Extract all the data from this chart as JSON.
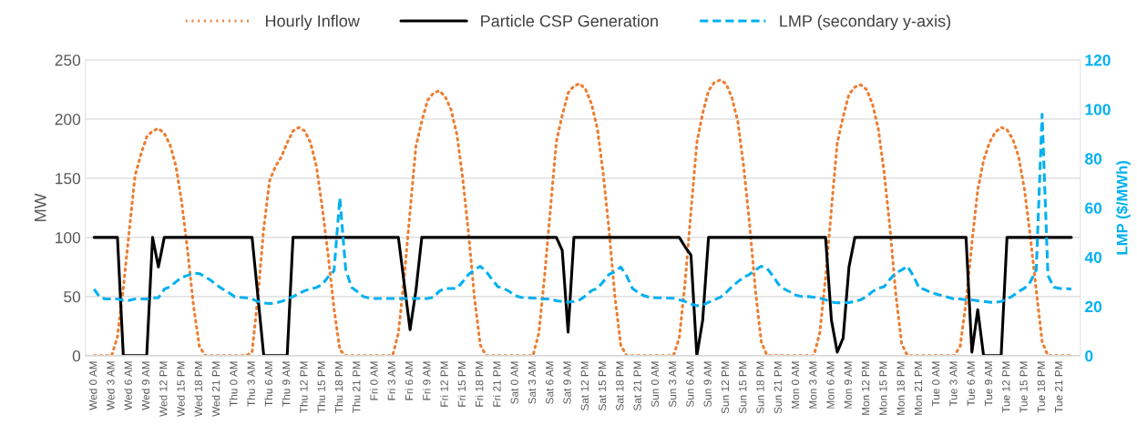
{
  "chart_data": {
    "type": "line",
    "ylabel": "MW",
    "y2label": "LMP ($/MWh)",
    "categories": [
      "Wed 0 AM",
      null,
      null,
      "Wed 3 AM",
      null,
      null,
      "Wed 6 AM",
      null,
      null,
      "Wed 9 AM",
      null,
      null,
      "Wed 12 PM",
      null,
      null,
      "Wed 15 PM",
      null,
      null,
      "Wed 18 PM",
      null,
      null,
      "Wed 21 PM",
      null,
      null,
      "Thu 0 AM",
      null,
      null,
      "Thu 3 AM",
      null,
      null,
      "Thu 6 AM",
      null,
      null,
      "Thu 9 AM",
      null,
      null,
      "Thu 12 PM",
      null,
      null,
      "Thu 15 PM",
      null,
      null,
      "Thu 18 PM",
      null,
      null,
      "Thu 21 PM",
      null,
      null,
      "Fri 0 AM",
      null,
      null,
      "Fri 3 AM",
      null,
      null,
      "Fri 6 AM",
      null,
      null,
      "Fri 9 AM",
      null,
      null,
      "Fri 12 PM",
      null,
      null,
      "Fri 15 PM",
      null,
      null,
      "Fri 18 PM",
      null,
      null,
      "Fri 21 PM",
      null,
      null,
      "Sat 0 AM",
      null,
      null,
      "Sat 3 AM",
      null,
      null,
      "Sat 6 AM",
      null,
      null,
      "Sat 9 AM",
      null,
      null,
      "Sat 12 PM",
      null,
      null,
      "Sat 15 PM",
      null,
      null,
      "Sat 18 PM",
      null,
      null,
      "Sat 21 PM",
      null,
      null,
      "Sun 0 AM",
      null,
      null,
      "Sun 3 AM",
      null,
      null,
      "Sun 6 AM",
      null,
      null,
      "Sun 9 AM",
      null,
      null,
      "Sun 12 PM",
      null,
      null,
      "Sun 15 PM",
      null,
      null,
      "Sun 18 PM",
      null,
      null,
      "Sun 21 PM",
      null,
      null,
      "Mon 0 AM",
      null,
      null,
      "Mon 3 AM",
      null,
      null,
      "Mon 6 AM",
      null,
      null,
      "Mon 9 AM",
      null,
      null,
      "Mon 12 PM",
      null,
      null,
      "Mon 15 PM",
      null,
      null,
      "Mon 18 PM",
      null,
      null,
      "Mon 21 PM",
      null,
      null,
      "Tue 0 AM",
      null,
      null,
      "Tue 3 AM",
      null,
      null,
      "Tue 6 AM",
      null,
      null,
      "Tue 9 AM",
      null,
      null,
      "Tue 12 PM",
      null,
      null,
      "Tue 15 PM",
      null,
      null,
      "Tue 18 PM",
      null,
      null,
      "Tue 21 PM",
      null,
      null
    ],
    "series": [
      {
        "name": "Hourly Inflow",
        "color": "#ed7d31",
        "line_style": "dotted",
        "values": [
          0,
          0,
          0,
          0,
          16,
          57,
          105,
          152,
          170,
          185,
          190,
          192,
          188,
          178,
          160,
          129,
          88,
          42,
          8,
          0,
          0,
          0,
          0,
          0,
          0,
          0,
          0,
          3,
          50,
          108,
          148,
          160,
          168,
          180,
          190,
          193,
          190,
          180,
          160,
          125,
          85,
          40,
          5,
          0,
          0,
          0,
          0,
          0,
          0,
          0,
          0,
          0,
          19,
          66,
          122,
          177,
          198,
          216,
          222,
          224,
          219,
          208,
          187,
          150,
          103,
          49,
          9,
          0,
          0,
          0,
          0,
          0,
          0,
          0,
          0,
          0,
          19,
          68,
          125,
          181,
          203,
          222,
          228,
          230,
          225,
          213,
          192,
          154,
          106,
          50,
          9,
          0,
          0,
          0,
          0,
          0,
          0,
          0,
          0,
          0,
          15,
          62,
          122,
          180,
          205,
          224,
          231,
          233,
          230,
          218,
          198,
          160,
          112,
          56,
          12,
          0,
          0,
          0,
          0,
          0,
          0,
          0,
          0,
          0,
          19,
          66,
          124,
          180,
          202,
          221,
          227,
          229,
          225,
          213,
          192,
          155,
          108,
          52,
          10,
          0,
          0,
          0,
          0,
          0,
          0,
          0,
          0,
          0,
          8,
          45,
          95,
          140,
          165,
          180,
          189,
          193,
          191,
          183,
          168,
          140,
          100,
          55,
          12,
          0,
          0,
          0,
          0,
          0
        ]
      },
      {
        "name": "Particle CSP Generation",
        "color": "#000000",
        "line_style": "solid",
        "values": [
          100,
          100,
          100,
          100,
          100,
          0,
          0,
          0,
          0,
          0,
          100,
          75,
          100,
          100,
          100,
          100,
          100,
          100,
          100,
          100,
          100,
          100,
          100,
          100,
          100,
          100,
          100,
          100,
          50,
          0,
          0,
          0,
          0,
          0,
          100,
          100,
          100,
          100,
          100,
          100,
          100,
          100,
          100,
          100,
          100,
          100,
          100,
          100,
          100,
          100,
          100,
          100,
          100,
          61,
          22,
          55,
          100,
          100,
          100,
          100,
          100,
          100,
          100,
          100,
          100,
          100,
          100,
          100,
          100,
          100,
          100,
          100,
          100,
          100,
          100,
          100,
          100,
          100,
          100,
          100,
          89,
          20,
          100,
          100,
          100,
          100,
          100,
          100,
          100,
          100,
          100,
          100,
          100,
          100,
          100,
          100,
          100,
          100,
          100,
          100,
          100,
          92,
          85,
          0,
          30,
          100,
          100,
          100,
          100,
          100,
          100,
          100,
          100,
          100,
          100,
          100,
          100,
          100,
          100,
          100,
          100,
          100,
          100,
          100,
          100,
          100,
          30,
          3,
          15,
          75,
          100,
          100,
          100,
          100,
          100,
          100,
          100,
          100,
          100,
          100,
          100,
          100,
          100,
          100,
          100,
          100,
          100,
          100,
          100,
          100,
          3,
          39,
          0,
          0,
          0,
          0,
          100,
          100,
          100,
          100,
          100,
          100,
          100,
          100,
          100,
          100,
          100,
          100
        ]
      },
      {
        "name": "LMP (secondary y-axis)",
        "color": "#00b0f0",
        "line_style": "dashed",
        "axis": "y2",
        "values": [
          27,
          23.7,
          23,
          23,
          23,
          22.5,
          22.5,
          23,
          23,
          23,
          23.5,
          23.5,
          27,
          28,
          30,
          31.8,
          32.6,
          33.5,
          33.3,
          32,
          30.5,
          28.6,
          27,
          25.6,
          24,
          23.7,
          23.5,
          23,
          22,
          21.4,
          21.2,
          21.4,
          22,
          23,
          24,
          25.2,
          26.4,
          27,
          27.7,
          28.9,
          32,
          34.4,
          64,
          35,
          27.7,
          26,
          24,
          23.4,
          23.2,
          23.2,
          23.2,
          23.2,
          23.2,
          23.2,
          23.2,
          23.2,
          23.2,
          23.2,
          23.7,
          26.2,
          27.3,
          27.3,
          27.3,
          30,
          33,
          34.8,
          36.3,
          34.2,
          31,
          28,
          27.3,
          26,
          24.3,
          23.7,
          23.5,
          23.4,
          23.2,
          23,
          23,
          22.3,
          22,
          21.7,
          22,
          22.7,
          24.3,
          26.4,
          27.3,
          30,
          33,
          34,
          36,
          32.4,
          27.3,
          25.6,
          24.3,
          23.7,
          23.5,
          23.5,
          23.4,
          23.3,
          22.7,
          22,
          21,
          20.3,
          20.5,
          21.7,
          22.7,
          23.7,
          25.6,
          28,
          30,
          31.8,
          33,
          34.8,
          36.3,
          35.4,
          32.4,
          28.8,
          27,
          25.8,
          24.5,
          24,
          24,
          23.8,
          23.3,
          22.7,
          21.8,
          21.5,
          21.5,
          21.6,
          22,
          22.7,
          24,
          26,
          27.4,
          28,
          31,
          33.5,
          34.8,
          36.3,
          32.4,
          27.4,
          26.8,
          25.6,
          25,
          24.3,
          23.7,
          23,
          23,
          22.7,
          22.7,
          22.3,
          22,
          21.7,
          21.7,
          22,
          23,
          24.3,
          26.1,
          27.4,
          30,
          34.8,
          98,
          32.5,
          27.8,
          27.3,
          27.3,
          27
        ]
      }
    ],
    "ylim": [
      0,
      250
    ],
    "yticks": [
      0,
      50,
      100,
      150,
      200,
      250
    ],
    "y2lim": [
      0,
      120
    ],
    "y2ticks": [
      0,
      20,
      40,
      60,
      80,
      100,
      120
    ],
    "grid": "y",
    "legend": "top",
    "marker": "none"
  }
}
